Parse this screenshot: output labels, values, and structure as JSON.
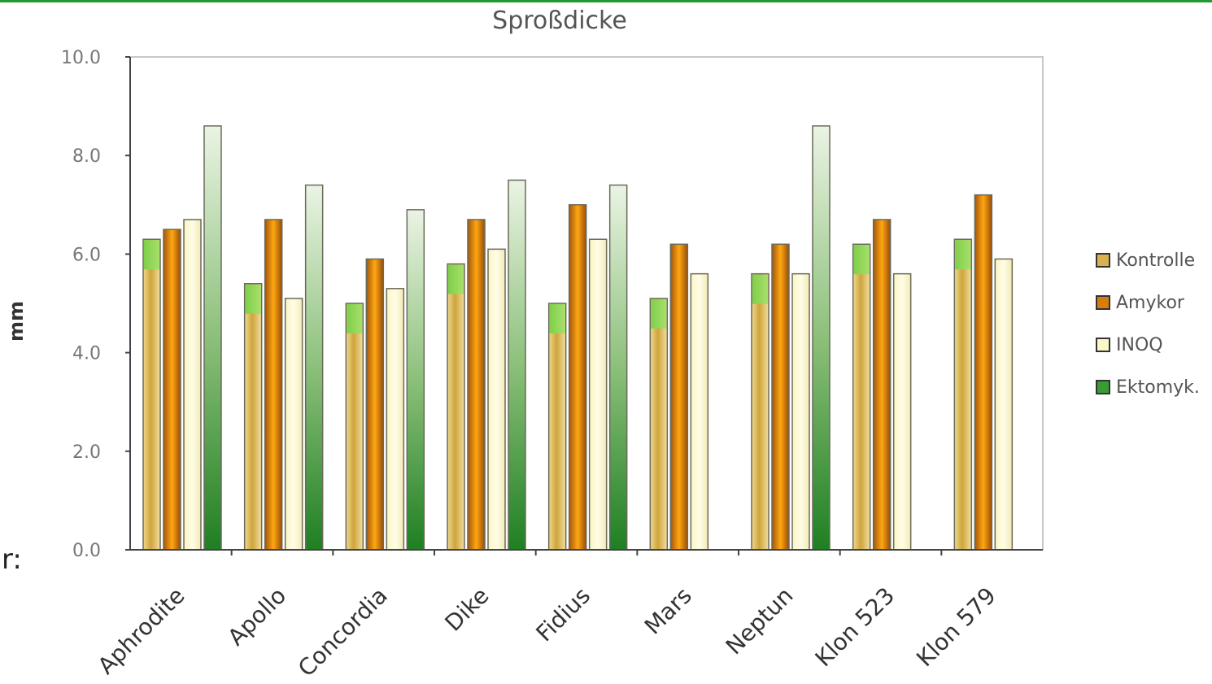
{
  "chart_data": {
    "type": "bar",
    "title": "Sproßdicke",
    "ylabel": "mm",
    "ylim": [
      0,
      100
    ],
    "yticks": [
      "0.0",
      "2.0",
      "4.0",
      "6.0",
      "8.0",
      "10.0"
    ],
    "categories": [
      "Aphrodite",
      "Apollo",
      "Concordia",
      "Dike",
      "Fidius",
      "Mars",
      "Neptun",
      "Klon 523",
      "Klon 579"
    ],
    "series": [
      {
        "name": "Kontrolle",
        "color": "#d9b24f",
        "values": [
          63,
          54,
          50,
          58,
          50,
          51,
          56,
          62,
          63
        ]
      },
      {
        "name": "Amykor",
        "color": "#d67d0a",
        "values": [
          65,
          67,
          59,
          67,
          70,
          62,
          62,
          67,
          72
        ]
      },
      {
        "name": "INOQ",
        "color": "#fbf7c8",
        "values": [
          67,
          51,
          53,
          61,
          63,
          56,
          56,
          56,
          59
        ]
      },
      {
        "name": "Ektomyk.",
        "color": "#3a9b35",
        "values": [
          86,
          74,
          69,
          75,
          74,
          null,
          86,
          null,
          null
        ]
      }
    ],
    "legend_position": "right",
    "grid": false
  },
  "page": {
    "fragment_text": "r:"
  }
}
